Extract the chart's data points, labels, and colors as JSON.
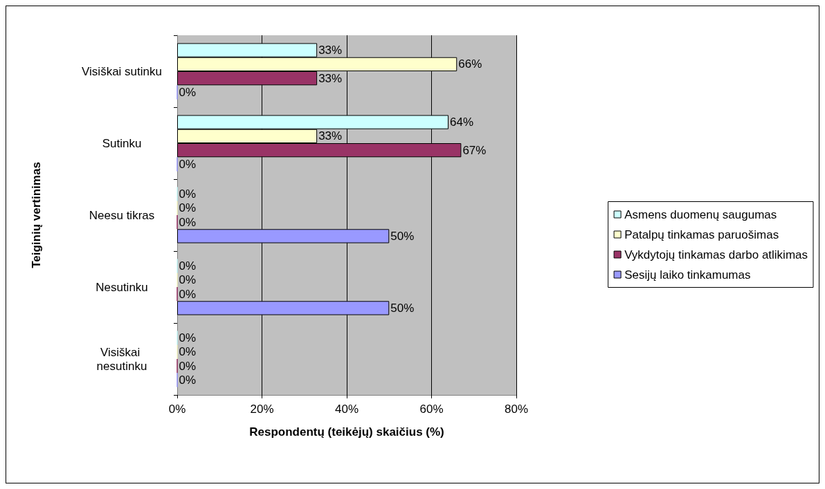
{
  "chart_data": {
    "type": "bar",
    "orientation": "horizontal",
    "categories": [
      "Visiškai sutinku",
      "Sutinku",
      "Neesu tikras",
      "Nesutinku",
      "Visiškai nesutinku"
    ],
    "series": [
      {
        "name": "Asmens duomenų saugumas",
        "color": "#ccffff",
        "values": [
          33,
          64,
          0,
          0,
          0
        ],
        "value_labels": [
          "33%",
          "64%",
          "0%",
          "0%",
          "0%"
        ]
      },
      {
        "name": "Patalpų tinkamas paruošimas",
        "color": "#ffffcc",
        "values": [
          66,
          33,
          0,
          0,
          0
        ],
        "value_labels": [
          "66%",
          "33%",
          "0%",
          "0%",
          "0%"
        ]
      },
      {
        "name": "Vykdytojų tinkamas darbo atlikimas",
        "color": "#993366",
        "values": [
          33,
          67,
          0,
          0,
          0
        ],
        "value_labels": [
          "33%",
          "67%",
          "0%",
          "0%",
          "0%"
        ]
      },
      {
        "name": "Sesijų laiko tinkamumas",
        "color": "#9999ff",
        "values": [
          0,
          0,
          50,
          50,
          0
        ],
        "value_labels": [
          "0%",
          "0%",
          "50%",
          "50%",
          "0%"
        ]
      }
    ],
    "xlim": [
      0,
      80
    ],
    "xticks": [
      {
        "value": 0,
        "label": "0%"
      },
      {
        "value": 20,
        "label": "20%"
      },
      {
        "value": 40,
        "label": "40%"
      },
      {
        "value": 60,
        "label": "60%"
      },
      {
        "value": 80,
        "label": "80%"
      }
    ],
    "xlabel": "Respondentų (teikėjų) skaičius (%)",
    "ylabel": "Teiginių vertinimas",
    "grid": "x",
    "legend": "right"
  }
}
